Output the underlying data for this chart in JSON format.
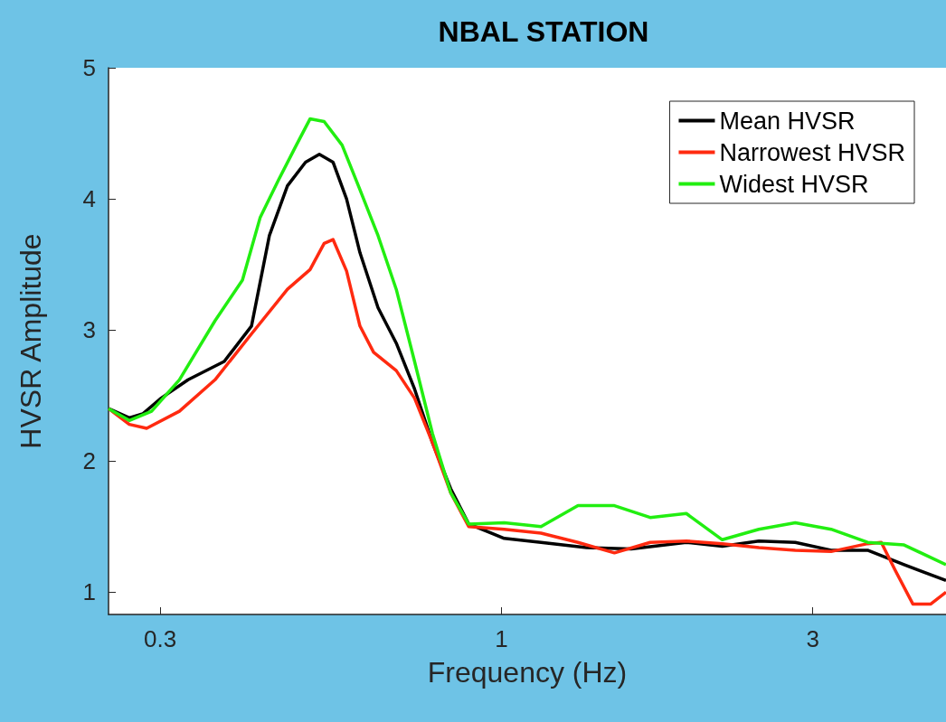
{
  "chart_data": {
    "type": "line",
    "title": "NBAL STATION",
    "xlabel": "Frequency (Hz)",
    "ylabel": "HVSR Amplitude",
    "log": "x",
    "xlim": [
      0.25,
      4.8
    ],
    "xticks": [
      0.3,
      1,
      3
    ],
    "ylim": [
      0.83,
      5
    ],
    "yticks": [
      1,
      2,
      3,
      4,
      5
    ],
    "grid": false,
    "legend": "top right",
    "marker": "none",
    "line_style": "solid",
    "series": [
      {
        "name": "Mean HVSR",
        "color": "#000000",
        "x": [
          0.25,
          0.269,
          0.282,
          0.301,
          0.331,
          0.376,
          0.414,
          0.441,
          0.47,
          0.501,
          0.526,
          0.552,
          0.579,
          0.607,
          0.647,
          0.69,
          0.736,
          0.784,
          0.836,
          0.891,
          0.966,
          1.01,
          1.15,
          1.35,
          1.58,
          1.92,
          2.18,
          2.48,
          2.82,
          3.2,
          3.64,
          4.14,
          4.8
        ],
        "values": [
          2.4,
          2.33,
          2.36,
          2.48,
          2.62,
          2.76,
          3.03,
          3.72,
          4.1,
          4.28,
          4.34,
          4.28,
          4.0,
          3.59,
          3.17,
          2.9,
          2.55,
          2.14,
          1.79,
          1.52,
          1.45,
          1.41,
          1.38,
          1.34,
          1.33,
          1.38,
          1.35,
          1.39,
          1.38,
          1.32,
          1.32,
          1.21,
          1.09
        ]
      },
      {
        "name": "Narrowest HVSR",
        "color": "#ff2a10",
        "x": [
          0.25,
          0.269,
          0.286,
          0.321,
          0.364,
          0.414,
          0.47,
          0.509,
          0.535,
          0.552,
          0.579,
          0.607,
          0.637,
          0.69,
          0.736,
          0.784,
          0.836,
          0.891,
          1.01,
          1.15,
          1.31,
          1.49,
          1.69,
          1.92,
          2.18,
          2.48,
          2.82,
          3.2,
          3.64,
          3.82,
          4.01,
          4.27,
          4.55,
          4.8
        ],
        "values": [
          2.4,
          2.28,
          2.25,
          2.38,
          2.62,
          2.97,
          3.31,
          3.46,
          3.66,
          3.69,
          3.45,
          3.03,
          2.83,
          2.69,
          2.48,
          2.14,
          1.76,
          1.5,
          1.48,
          1.45,
          1.38,
          1.3,
          1.38,
          1.39,
          1.37,
          1.34,
          1.32,
          1.31,
          1.37,
          1.38,
          1.17,
          0.91,
          0.91,
          1.0
        ]
      },
      {
        "name": "Widest HVSR",
        "color": "#22ee11",
        "x": [
          0.25,
          0.269,
          0.291,
          0.321,
          0.364,
          0.401,
          0.427,
          0.455,
          0.485,
          0.509,
          0.535,
          0.57,
          0.607,
          0.647,
          0.69,
          0.736,
          0.784,
          0.836,
          0.891,
          1.01,
          1.15,
          1.31,
          1.49,
          1.69,
          1.92,
          2.18,
          2.48,
          2.82,
          3.2,
          3.64,
          4.14,
          4.8
        ],
        "values": [
          2.4,
          2.31,
          2.38,
          2.62,
          3.07,
          3.38,
          3.86,
          4.14,
          4.41,
          4.61,
          4.59,
          4.41,
          4.07,
          3.72,
          3.31,
          2.76,
          2.21,
          1.76,
          1.52,
          1.53,
          1.5,
          1.66,
          1.66,
          1.57,
          1.6,
          1.4,
          1.48,
          1.53,
          1.48,
          1.38,
          1.36,
          1.21
        ]
      }
    ]
  }
}
